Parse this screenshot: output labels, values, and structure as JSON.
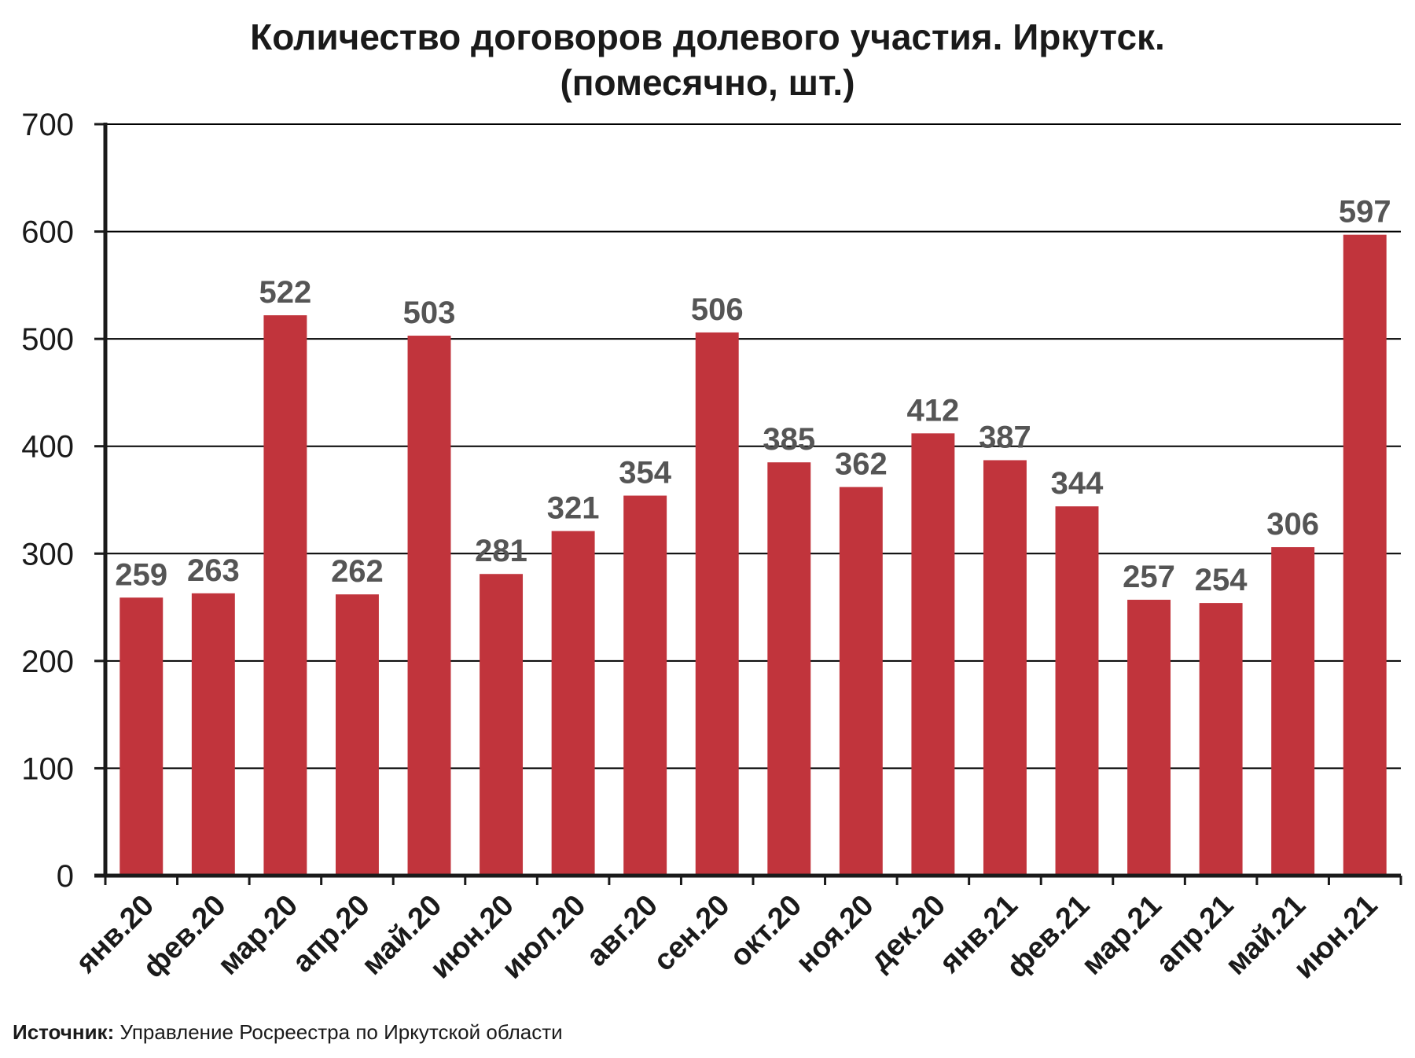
{
  "chart_data": {
    "type": "bar",
    "title": "Количество договоров долевого участия. Иркутск.",
    "subtitle": "(помесячно, шт.)",
    "categories": [
      "янв.20",
      "фев.20",
      "мар.20",
      "апр.20",
      "май.20",
      "июн.20",
      "июл.20",
      "авг.20",
      "сен.20",
      "окт.20",
      "ноя.20",
      "дек.20",
      "янв.21",
      "фев.21",
      "мар.21",
      "апр.21",
      "май.21",
      "июн.21"
    ],
    "values": [
      259,
      263,
      522,
      262,
      503,
      281,
      321,
      354,
      506,
      385,
      362,
      412,
      387,
      344,
      257,
      254,
      306,
      597
    ],
    "ylim": [
      0,
      700
    ],
    "yticks": [
      0,
      100,
      200,
      300,
      400,
      500,
      600,
      700
    ],
    "xlabel": "",
    "ylabel": "",
    "grid": true,
    "legend": "none",
    "data_labels": true,
    "colors": {
      "bar": "#c1343c",
      "label": "#555555",
      "axis": "#1a1a1a"
    }
  },
  "source": {
    "label": "Источник:",
    "text": "Управление Росреестра по Иркутской области"
  }
}
